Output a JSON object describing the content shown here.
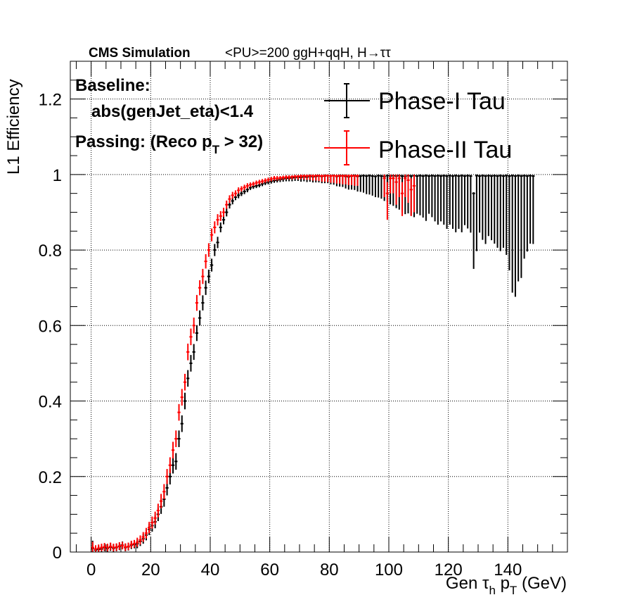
{
  "header": {
    "experiment": "CMS Simulation",
    "conditions": "<PU>=200  ggH+qqH, H→ττ"
  },
  "annotations": {
    "baseline_label": "Baseline:",
    "baseline_cut": "abs(genJet_eta)<1.4",
    "passing_prefix": "Passing: (Reco p",
    "passing_sub": "T",
    "passing_suffix": " > 32)"
  },
  "colors": {
    "phase1": "#000000",
    "phase2": "#ff0000",
    "grid": "#000000"
  },
  "chart_data": {
    "type": "scatter",
    "title": "",
    "xlabel": "Gen τh pT (GeV)",
    "xlabel_parts": {
      "tau": "Gen τ",
      "tau_sub": "h",
      "p": " p",
      "p_sub": "T",
      "unit": " (GeV)"
    },
    "ylabel": "L1 Efficiency",
    "xlim": [
      -7,
      160
    ],
    "ylim": [
      0,
      1.3
    ],
    "xticks": [
      0,
      20,
      40,
      60,
      80,
      100,
      120,
      140
    ],
    "yticks": [
      0,
      0.2,
      0.4,
      0.6,
      0.8,
      1,
      1.2
    ],
    "ytick_labels": [
      "0",
      "0.2",
      "0.4",
      "0.6",
      "0.8",
      "1",
      "1.2"
    ],
    "grid": true,
    "legend_position": "top-right",
    "bin_width": 1,
    "series": [
      {
        "name": "Phase-I Tau",
        "color": "#000000",
        "x": [
          0.5,
          1.5,
          2.5,
          3.5,
          4.5,
          5.5,
          6.5,
          7.5,
          8.5,
          9.5,
          10.5,
          11.5,
          12.5,
          13.5,
          14.5,
          15.5,
          16.5,
          17.5,
          18.5,
          19.5,
          20.5,
          21.5,
          22.5,
          23.5,
          24.5,
          25.5,
          26.5,
          27.5,
          28.5,
          29.5,
          30.5,
          31.5,
          32.5,
          33.5,
          34.5,
          35.5,
          36.5,
          37.5,
          38.5,
          39.5,
          40.5,
          41.5,
          42.5,
          43.5,
          44.5,
          45.5,
          46.5,
          47.5,
          48.5,
          49.5,
          50.5,
          51.5,
          52.5,
          53.5,
          54.5,
          55.5,
          56.5,
          57.5,
          58.5,
          59.5,
          60.5,
          61.5,
          62.5,
          63.5,
          64.5,
          65.5,
          66.5,
          67.5,
          68.5,
          69.5,
          70.5,
          71.5,
          72.5,
          73.5,
          74.5,
          75.5,
          76.5,
          77.5,
          78.5,
          79.5,
          80.5,
          81.5,
          82.5,
          83.5,
          84.5,
          85.5,
          86.5,
          87.5,
          88.5,
          89.5,
          90.5,
          91.5,
          92.5,
          93.5,
          94.5,
          95.5,
          96.5,
          97.5,
          98.5,
          99.5,
          100.5,
          101.5,
          102.5,
          103.5,
          104.5,
          105.5,
          106.5,
          107.5,
          108.5,
          109.5,
          110.5,
          111.5,
          112.5,
          113.5,
          114.5,
          115.5,
          116.5,
          117.5,
          118.5,
          119.5,
          120.5,
          121.5,
          122.5,
          123.5,
          124.5,
          125.5,
          126.5,
          127.5,
          128.5,
          129.5,
          130.5,
          131.5,
          132.5,
          133.5,
          134.5,
          135.5,
          136.5,
          137.5,
          138.5,
          139.5,
          140.5,
          141.5,
          142.5,
          143.5,
          144.5,
          145.5,
          146.5,
          147.5,
          148.5
        ],
        "y": [
          0.01,
          0.005,
          0.007,
          0.008,
          0.012,
          0.01,
          0.013,
          0.01,
          0.012,
          0.015,
          0.018,
          0.012,
          0.014,
          0.018,
          0.02,
          0.022,
          0.028,
          0.035,
          0.045,
          0.06,
          0.07,
          0.08,
          0.1,
          0.12,
          0.14,
          0.17,
          0.2,
          0.23,
          0.24,
          0.3,
          0.34,
          0.4,
          0.46,
          0.5,
          0.53,
          0.58,
          0.62,
          0.66,
          0.7,
          0.73,
          0.76,
          0.8,
          0.82,
          0.86,
          0.88,
          0.9,
          0.92,
          0.93,
          0.94,
          0.945,
          0.95,
          0.955,
          0.96,
          0.965,
          0.968,
          0.97,
          0.972,
          0.975,
          0.978,
          0.98,
          0.982,
          0.984,
          0.985,
          0.987,
          0.988,
          0.99,
          0.99,
          0.991,
          0.992,
          0.993,
          0.992,
          0.994,
          0.993,
          0.995,
          0.994,
          0.995,
          0.996,
          0.995,
          0.996,
          0.997,
          0.996,
          0.997,
          0.995,
          0.996,
          0.997,
          0.995,
          0.994,
          0.996,
          0.997,
          0.995,
          0.996,
          0.997,
          0.996,
          0.997,
          0.996,
          0.995,
          0.997,
          0.996,
          0.995,
          0.997,
          0.996,
          0.997,
          0.996,
          0.997,
          0.996,
          0.995,
          0.997,
          0.996,
          0.997,
          0.996,
          0.997,
          0.996,
          0.997,
          0.996,
          0.997,
          0.996,
          0.997,
          0.996,
          0.997,
          0.996,
          0.997,
          0.996,
          0.997,
          0.996,
          0.997,
          0.996,
          0.997,
          0.996,
          0.95,
          0.997,
          0.996,
          0.997,
          0.996,
          0.997,
          0.996,
          0.997,
          0.996,
          0.997,
          0.996,
          0.997,
          0.996,
          0.997,
          0.996,
          0.997,
          0.996,
          0.997,
          0.996,
          0.997,
          0.996
        ],
        "err_low": [
          0.02,
          0.01,
          0.01,
          0.01,
          0.01,
          0.01,
          0.01,
          0.01,
          0.01,
          0.01,
          0.01,
          0.01,
          0.01,
          0.01,
          0.01,
          0.012,
          0.012,
          0.013,
          0.014,
          0.015,
          0.016,
          0.017,
          0.018,
          0.019,
          0.02,
          0.02,
          0.021,
          0.022,
          0.022,
          0.022,
          0.022,
          0.022,
          0.022,
          0.022,
          0.021,
          0.021,
          0.02,
          0.02,
          0.019,
          0.018,
          0.017,
          0.016,
          0.015,
          0.013,
          0.012,
          0.011,
          0.01,
          0.009,
          0.008,
          0.008,
          0.007,
          0.007,
          0.007,
          0.006,
          0.006,
          0.006,
          0.006,
          0.006,
          0.006,
          0.006,
          0.006,
          0.006,
          0.006,
          0.007,
          0.007,
          0.008,
          0.008,
          0.009,
          0.009,
          0.01,
          0.011,
          0.012,
          0.013,
          0.014,
          0.015,
          0.016,
          0.017,
          0.018,
          0.019,
          0.02,
          0.022,
          0.024,
          0.026,
          0.028,
          0.03,
          0.032,
          0.034,
          0.036,
          0.038,
          0.04,
          0.042,
          0.045,
          0.048,
          0.05,
          0.052,
          0.055,
          0.058,
          0.06,
          0.065,
          0.07,
          0.075,
          0.08,
          0.085,
          0.09,
          0.095,
          0.1,
          0.1,
          0.105,
          0.11,
          0.1,
          0.105,
          0.11,
          0.12,
          0.1,
          0.11,
          0.12,
          0.13,
          0.12,
          0.13,
          0.14,
          0.13,
          0.14,
          0.15,
          0.14,
          0.15,
          0.13,
          0.14,
          0.15,
          0.2,
          0.2,
          0.15,
          0.17,
          0.18,
          0.16,
          0.17,
          0.18,
          0.19,
          0.2,
          0.19,
          0.21,
          0.25,
          0.31,
          0.32,
          0.28,
          0.27,
          0.22,
          0.2,
          0.18,
          0.18
        ],
        "err_high": [
          0.02,
          0.01,
          0.01,
          0.01,
          0.01,
          0.01,
          0.01,
          0.01,
          0.01,
          0.01,
          0.01,
          0.01,
          0.01,
          0.01,
          0.01,
          0.012,
          0.012,
          0.013,
          0.014,
          0.015,
          0.016,
          0.017,
          0.018,
          0.019,
          0.02,
          0.02,
          0.021,
          0.022,
          0.022,
          0.022,
          0.022,
          0.022,
          0.022,
          0.022,
          0.021,
          0.021,
          0.02,
          0.02,
          0.019,
          0.018,
          0.017,
          0.016,
          0.015,
          0.013,
          0.012,
          0.011,
          0.01,
          0.009,
          0.008,
          0.008,
          0.007,
          0.007,
          0.007,
          0.006,
          0.006,
          0.006,
          0.006,
          0.006,
          0.006,
          0.006,
          0.006,
          0.006,
          0.006,
          0.006,
          0.006,
          0.006,
          0.006,
          0.006,
          0.005,
          0.005,
          0.005,
          0.004,
          0.004,
          0.004,
          0.004,
          0.004,
          0.003,
          0.003,
          0.003,
          0.003,
          0.003,
          0.003,
          0.003,
          0.003,
          0.003,
          0.003,
          0.003,
          0.003,
          0.003,
          0.003,
          0.003,
          0.003,
          0.003,
          0.003,
          0.003,
          0.003,
          0.003,
          0.003,
          0.003,
          0.003,
          0.003,
          0.003,
          0.003,
          0.003,
          0.003,
          0.003,
          0.003,
          0.003,
          0.003,
          0.003,
          0.003,
          0.003,
          0.003,
          0.003,
          0.003,
          0.003,
          0.003,
          0.003,
          0.003,
          0.003,
          0.003,
          0.003,
          0.003,
          0.003,
          0.003,
          0.003,
          0.003,
          0.003,
          0.003,
          0.003,
          0.003,
          0.003,
          0.003,
          0.003,
          0.003,
          0.003,
          0.003,
          0.003,
          0.003,
          0.003,
          0.003,
          0.003,
          0.003,
          0.003,
          0.003,
          0.003,
          0.003,
          0.003,
          0.003
        ]
      },
      {
        "name": "Phase-II Tau",
        "color": "#ff0000",
        "x": [
          0.5,
          1.5,
          2.5,
          3.5,
          4.5,
          5.5,
          6.5,
          7.5,
          8.5,
          9.5,
          10.5,
          11.5,
          12.5,
          13.5,
          14.5,
          15.5,
          16.5,
          17.5,
          18.5,
          19.5,
          20.5,
          21.5,
          22.5,
          23.5,
          24.5,
          25.5,
          26.5,
          27.5,
          28.5,
          29.5,
          30.5,
          31.5,
          32.5,
          33.5,
          34.5,
          35.5,
          36.5,
          37.5,
          38.5,
          39.5,
          40.5,
          41.5,
          42.5,
          43.5,
          44.5,
          45.5,
          46.5,
          47.5,
          48.5,
          49.5,
          50.5,
          51.5,
          52.5,
          53.5,
          54.5,
          55.5,
          56.5,
          57.5,
          58.5,
          59.5,
          60.5,
          61.5,
          62.5,
          63.5,
          64.5,
          65.5,
          66.5,
          67.5,
          68.5,
          69.5,
          70.5,
          71.5,
          72.5,
          73.5,
          74.5,
          75.5,
          76.5,
          77.5,
          78.5,
          79.5,
          80.5,
          81.5,
          82.5,
          83.5,
          84.5,
          85.5,
          86.5,
          87.5,
          88.5,
          89.5,
          98.5,
          99.5,
          100.5,
          101.5,
          102.5,
          103.5,
          104.5,
          105.5,
          106.5,
          107.5,
          108.5
        ],
        "y": [
          0.012,
          0.008,
          0.01,
          0.012,
          0.014,
          0.012,
          0.015,
          0.012,
          0.013,
          0.016,
          0.017,
          0.013,
          0.015,
          0.02,
          0.022,
          0.026,
          0.032,
          0.04,
          0.05,
          0.065,
          0.078,
          0.09,
          0.11,
          0.135,
          0.16,
          0.2,
          0.23,
          0.27,
          0.3,
          0.37,
          0.41,
          0.45,
          0.53,
          0.57,
          0.6,
          0.66,
          0.7,
          0.73,
          0.77,
          0.8,
          0.84,
          0.86,
          0.88,
          0.89,
          0.9,
          0.92,
          0.935,
          0.945,
          0.95,
          0.958,
          0.962,
          0.966,
          0.97,
          0.973,
          0.975,
          0.978,
          0.98,
          0.982,
          0.984,
          0.986,
          0.988,
          0.99,
          0.99,
          0.991,
          0.992,
          0.993,
          0.993,
          0.994,
          0.995,
          0.995,
          0.996,
          0.996,
          0.996,
          0.997,
          0.996,
          0.997,
          0.997,
          0.996,
          0.997,
          0.997,
          0.996,
          0.997,
          0.996,
          0.997,
          0.996,
          0.997,
          0.996,
          0.997,
          0.996,
          0.997,
          0.99,
          0.95,
          0.99,
          0.99,
          0.98,
          0.99,
          0.95,
          0.99,
          0.985,
          0.96,
          0.97
        ],
        "err_low": [
          0.015,
          0.01,
          0.01,
          0.01,
          0.01,
          0.01,
          0.01,
          0.01,
          0.01,
          0.01,
          0.01,
          0.01,
          0.01,
          0.01,
          0.01,
          0.012,
          0.012,
          0.013,
          0.014,
          0.015,
          0.016,
          0.017,
          0.018,
          0.019,
          0.02,
          0.02,
          0.021,
          0.022,
          0.022,
          0.022,
          0.022,
          0.022,
          0.022,
          0.022,
          0.021,
          0.021,
          0.02,
          0.02,
          0.019,
          0.018,
          0.017,
          0.016,
          0.015,
          0.013,
          0.012,
          0.011,
          0.01,
          0.009,
          0.008,
          0.008,
          0.007,
          0.007,
          0.007,
          0.006,
          0.006,
          0.006,
          0.006,
          0.006,
          0.006,
          0.006,
          0.006,
          0.006,
          0.006,
          0.006,
          0.006,
          0.006,
          0.006,
          0.007,
          0.007,
          0.008,
          0.008,
          0.009,
          0.01,
          0.011,
          0.012,
          0.013,
          0.014,
          0.015,
          0.016,
          0.017,
          0.018,
          0.019,
          0.02,
          0.021,
          0.022,
          0.023,
          0.024,
          0.025,
          0.026,
          0.027,
          0.05,
          0.07,
          0.04,
          0.04,
          0.06,
          0.05,
          0.06,
          0.05,
          0.06,
          0.07,
          0.07
        ],
        "err_high": [
          0.015,
          0.01,
          0.01,
          0.01,
          0.01,
          0.01,
          0.01,
          0.01,
          0.01,
          0.01,
          0.01,
          0.01,
          0.01,
          0.01,
          0.01,
          0.012,
          0.012,
          0.013,
          0.014,
          0.015,
          0.016,
          0.017,
          0.018,
          0.019,
          0.02,
          0.02,
          0.021,
          0.022,
          0.022,
          0.022,
          0.022,
          0.022,
          0.022,
          0.022,
          0.021,
          0.021,
          0.02,
          0.02,
          0.019,
          0.018,
          0.017,
          0.016,
          0.015,
          0.013,
          0.012,
          0.011,
          0.01,
          0.009,
          0.008,
          0.008,
          0.007,
          0.007,
          0.007,
          0.006,
          0.006,
          0.006,
          0.006,
          0.006,
          0.006,
          0.006,
          0.006,
          0.006,
          0.006,
          0.005,
          0.005,
          0.005,
          0.005,
          0.004,
          0.004,
          0.004,
          0.004,
          0.004,
          0.004,
          0.003,
          0.004,
          0.003,
          0.003,
          0.004,
          0.003,
          0.003,
          0.004,
          0.003,
          0.004,
          0.003,
          0.004,
          0.003,
          0.004,
          0.003,
          0.004,
          0.003,
          0.01,
          0.03,
          0.01,
          0.01,
          0.02,
          0.01,
          0.03,
          0.01,
          0.015,
          0.03,
          0.03
        ]
      }
    ]
  }
}
